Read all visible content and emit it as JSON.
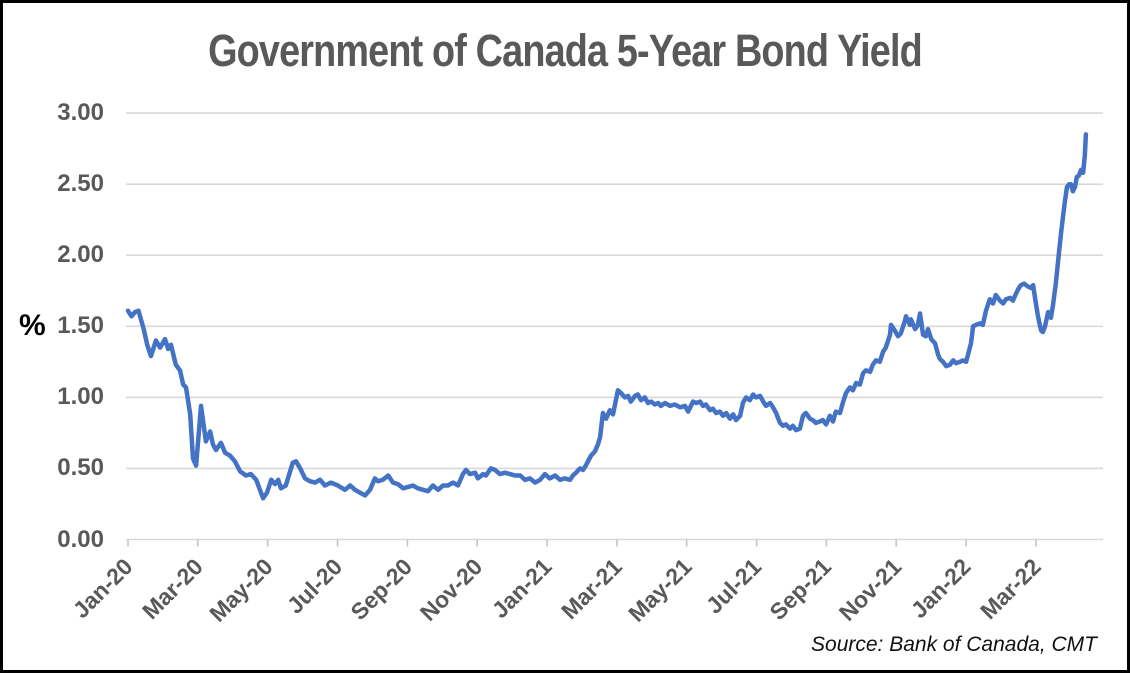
{
  "colors": {
    "line": "#4472C4",
    "grid": "#D9D9D9",
    "tick": "#C6C6C6",
    "label_gray": "#595959",
    "background": "#FFFFFF",
    "border": "#000000"
  },
  "chart_data": {
    "type": "line",
    "title": "Government of Canada 5-Year Bond Yield",
    "ylabel": "%",
    "source_note": "Source: Bank of Canada, CMT",
    "ylim": [
      0,
      3
    ],
    "ytick_step": 0.5,
    "ytick_labels": [
      "0.00",
      "0.50",
      "1.00",
      "1.50",
      "2.00",
      "2.50",
      "3.00"
    ],
    "xtick_labels": [
      "Jan-20",
      "Mar-20",
      "May-20",
      "Jul-20",
      "Sep-20",
      "Nov-20",
      "Jan-21",
      "Mar-21",
      "May-21",
      "Jul-21",
      "Sep-21",
      "Nov-21",
      "Jan-22",
      "Mar-22"
    ],
    "xtick_months": [
      0,
      2,
      4,
      6,
      8,
      10,
      12,
      14,
      16,
      18,
      20,
      22,
      24,
      26
    ],
    "x_unit": "months since Jan-2020, data ends mid-Apr-2022",
    "grid": "horizontal",
    "legend": "none",
    "series": [
      {
        "name": "Government of Canada 5-Year Bond Yield (%)",
        "points": [
          [
            0,
            1.61
          ],
          [
            0.1,
            1.57
          ],
          [
            0.2,
            1.6
          ],
          [
            0.3,
            1.61
          ],
          [
            0.45,
            1.48
          ],
          [
            0.55,
            1.37
          ],
          [
            0.66,
            1.29
          ],
          [
            0.8,
            1.4
          ],
          [
            0.92,
            1.35
          ],
          [
            1.06,
            1.41
          ],
          [
            1.15,
            1.34
          ],
          [
            1.23,
            1.37
          ],
          [
            1.37,
            1.23
          ],
          [
            1.49,
            1.19
          ],
          [
            1.58,
            1.09
          ],
          [
            1.66,
            1.07
          ],
          [
            1.78,
            0.88
          ],
          [
            1.86,
            0.57
          ],
          [
            1.95,
            0.52
          ],
          [
            2.09,
            0.94
          ],
          [
            2.23,
            0.69
          ],
          [
            2.35,
            0.76
          ],
          [
            2.43,
            0.67
          ],
          [
            2.52,
            0.63
          ],
          [
            2.66,
            0.68
          ],
          [
            2.78,
            0.61
          ],
          [
            2.92,
            0.59
          ],
          [
            3.06,
            0.55
          ],
          [
            3.21,
            0.48
          ],
          [
            3.38,
            0.45
          ],
          [
            3.52,
            0.46
          ],
          [
            3.67,
            0.42
          ],
          [
            3.87,
            0.29
          ],
          [
            3.98,
            0.33
          ],
          [
            4.1,
            0.42
          ],
          [
            4.21,
            0.39
          ],
          [
            4.3,
            0.42
          ],
          [
            4.38,
            0.36
          ],
          [
            4.52,
            0.38
          ],
          [
            4.72,
            0.54
          ],
          [
            4.81,
            0.55
          ],
          [
            4.93,
            0.5
          ],
          [
            5.07,
            0.43
          ],
          [
            5.21,
            0.41
          ],
          [
            5.35,
            0.4
          ],
          [
            5.5,
            0.42
          ],
          [
            5.64,
            0.38
          ],
          [
            5.81,
            0.4
          ],
          [
            6.01,
            0.38
          ],
          [
            6.21,
            0.35
          ],
          [
            6.36,
            0.38
          ],
          [
            6.5,
            0.35
          ],
          [
            6.64,
            0.33
          ],
          [
            6.79,
            0.31
          ],
          [
            6.93,
            0.35
          ],
          [
            7.07,
            0.43
          ],
          [
            7.16,
            0.41
          ],
          [
            7.3,
            0.42
          ],
          [
            7.45,
            0.45
          ],
          [
            7.59,
            0.4
          ],
          [
            7.73,
            0.39
          ],
          [
            7.88,
            0.36
          ],
          [
            8.02,
            0.37
          ],
          [
            8.16,
            0.38
          ],
          [
            8.3,
            0.36
          ],
          [
            8.45,
            0.35
          ],
          [
            8.59,
            0.34
          ],
          [
            8.73,
            0.38
          ],
          [
            8.88,
            0.35
          ],
          [
            9.02,
            0.38
          ],
          [
            9.16,
            0.38
          ],
          [
            9.31,
            0.4
          ],
          [
            9.45,
            0.38
          ],
          [
            9.59,
            0.46
          ],
          [
            9.68,
            0.49
          ],
          [
            9.79,
            0.46
          ],
          [
            9.94,
            0.47
          ],
          [
            10.02,
            0.43
          ],
          [
            10.17,
            0.46
          ],
          [
            10.25,
            0.45
          ],
          [
            10.39,
            0.5
          ],
          [
            10.51,
            0.49
          ],
          [
            10.65,
            0.46
          ],
          [
            10.8,
            0.47
          ],
          [
            10.94,
            0.46
          ],
          [
            11.08,
            0.45
          ],
          [
            11.23,
            0.45
          ],
          [
            11.37,
            0.42
          ],
          [
            11.51,
            0.43
          ],
          [
            11.66,
            0.4
          ],
          [
            11.8,
            0.42
          ],
          [
            11.94,
            0.46
          ],
          [
            12.08,
            0.43
          ],
          [
            12.23,
            0.45
          ],
          [
            12.37,
            0.42
          ],
          [
            12.51,
            0.43
          ],
          [
            12.66,
            0.42
          ],
          [
            12.74,
            0.45
          ],
          [
            12.83,
            0.47
          ],
          [
            12.94,
            0.5
          ],
          [
            13.03,
            0.49
          ],
          [
            13.11,
            0.52
          ],
          [
            13.26,
            0.59
          ],
          [
            13.37,
            0.62
          ],
          [
            13.46,
            0.67
          ],
          [
            13.52,
            0.72
          ],
          [
            13.6,
            0.89
          ],
          [
            13.69,
            0.85
          ],
          [
            13.8,
            0.91
          ],
          [
            13.89,
            0.88
          ],
          [
            14.03,
            1.05
          ],
          [
            14.12,
            1.03
          ],
          [
            14.23,
            1
          ],
          [
            14.32,
            1.01
          ],
          [
            14.4,
            0.97
          ],
          [
            14.52,
            1.01
          ],
          [
            14.6,
            1.02
          ],
          [
            14.69,
            0.98
          ],
          [
            14.8,
            1
          ],
          [
            14.89,
            0.96
          ],
          [
            14.98,
            0.97
          ],
          [
            15.09,
            0.95
          ],
          [
            15.18,
            0.96
          ],
          [
            15.26,
            0.94
          ],
          [
            15.38,
            0.96
          ],
          [
            15.52,
            0.94
          ],
          [
            15.66,
            0.95
          ],
          [
            15.81,
            0.93
          ],
          [
            15.95,
            0.94
          ],
          [
            16.04,
            0.9
          ],
          [
            16.18,
            0.97
          ],
          [
            16.27,
            0.96
          ],
          [
            16.38,
            0.97
          ],
          [
            16.47,
            0.94
          ],
          [
            16.55,
            0.95
          ],
          [
            16.67,
            0.91
          ],
          [
            16.75,
            0.92
          ],
          [
            16.84,
            0.89
          ],
          [
            16.95,
            0.9
          ],
          [
            17.04,
            0.87
          ],
          [
            17.13,
            0.89
          ],
          [
            17.24,
            0.85
          ],
          [
            17.33,
            0.88
          ],
          [
            17.41,
            0.84
          ],
          [
            17.53,
            0.87
          ],
          [
            17.61,
            0.96
          ],
          [
            17.7,
            1
          ],
          [
            17.81,
            0.98
          ],
          [
            17.9,
            1.02
          ],
          [
            17.98,
            1
          ],
          [
            18.1,
            1.01
          ],
          [
            18.19,
            0.97
          ],
          [
            18.27,
            0.94
          ],
          [
            18.39,
            0.96
          ],
          [
            18.47,
            0.93
          ],
          [
            18.56,
            0.89
          ],
          [
            18.67,
            0.82
          ],
          [
            18.76,
            0.8
          ],
          [
            18.84,
            0.81
          ],
          [
            18.96,
            0.78
          ],
          [
            19.04,
            0.8
          ],
          [
            19.13,
            0.77
          ],
          [
            19.24,
            0.78
          ],
          [
            19.33,
            0.87
          ],
          [
            19.41,
            0.89
          ],
          [
            19.53,
            0.85
          ],
          [
            19.61,
            0.84
          ],
          [
            19.7,
            0.82
          ],
          [
            19.81,
            0.83
          ],
          [
            19.9,
            0.84
          ],
          [
            19.99,
            0.81
          ],
          [
            20.1,
            0.87
          ],
          [
            20.19,
            0.83
          ],
          [
            20.27,
            0.9
          ],
          [
            20.39,
            0.89
          ],
          [
            20.47,
            0.96
          ],
          [
            20.56,
            1.03
          ],
          [
            20.67,
            1.07
          ],
          [
            20.76,
            1.05
          ],
          [
            20.85,
            1.1
          ],
          [
            20.96,
            1.09
          ],
          [
            21.05,
            1.17
          ],
          [
            21.13,
            1.19
          ],
          [
            21.25,
            1.18
          ],
          [
            21.33,
            1.23
          ],
          [
            21.42,
            1.26
          ],
          [
            21.53,
            1.25
          ],
          [
            21.62,
            1.32
          ],
          [
            21.7,
            1.35
          ],
          [
            21.82,
            1.44
          ],
          [
            21.85,
            1.51
          ],
          [
            21.96,
            1.47
          ],
          [
            22.05,
            1.43
          ],
          [
            22.13,
            1.45
          ],
          [
            22.25,
            1.54
          ],
          [
            22.28,
            1.57
          ],
          [
            22.39,
            1.51
          ],
          [
            22.42,
            1.55
          ],
          [
            22.54,
            1.48
          ],
          [
            22.62,
            1.51
          ],
          [
            22.68,
            1.59
          ],
          [
            22.77,
            1.44
          ],
          [
            22.85,
            1.43
          ],
          [
            22.91,
            1.48
          ],
          [
            23,
            1.41
          ],
          [
            23.11,
            1.38
          ],
          [
            23.2,
            1.3
          ],
          [
            23.25,
            1.27
          ],
          [
            23.34,
            1.25
          ],
          [
            23.43,
            1.22
          ],
          [
            23.54,
            1.23
          ],
          [
            23.63,
            1.26
          ],
          [
            23.71,
            1.24
          ],
          [
            23.83,
            1.25
          ],
          [
            23.91,
            1.26
          ],
          [
            24,
            1.25
          ],
          [
            24.14,
            1.38
          ],
          [
            24.2,
            1.5
          ],
          [
            24.28,
            1.51
          ],
          [
            24.4,
            1.52
          ],
          [
            24.48,
            1.51
          ],
          [
            24.57,
            1.61
          ],
          [
            24.68,
            1.69
          ],
          [
            24.77,
            1.66
          ],
          [
            24.85,
            1.72
          ],
          [
            24.97,
            1.68
          ],
          [
            25.06,
            1.66
          ],
          [
            25.14,
            1.69
          ],
          [
            25.26,
            1.7
          ],
          [
            25.34,
            1.68
          ],
          [
            25.43,
            1.73
          ],
          [
            25.49,
            1.76
          ],
          [
            25.57,
            1.79
          ],
          [
            25.66,
            1.8
          ],
          [
            25.77,
            1.78
          ],
          [
            25.86,
            1.77
          ],
          [
            25.92,
            1.79
          ],
          [
            26,
            1.66
          ],
          [
            26.06,
            1.57
          ],
          [
            26.12,
            1.5
          ],
          [
            26.15,
            1.47
          ],
          [
            26.2,
            1.46
          ],
          [
            26.26,
            1.5
          ],
          [
            26.35,
            1.6
          ],
          [
            26.43,
            1.56
          ],
          [
            26.49,
            1.65
          ],
          [
            26.57,
            1.8
          ],
          [
            26.66,
            2.02
          ],
          [
            26.72,
            2.16
          ],
          [
            26.77,
            2.26
          ],
          [
            26.83,
            2.38
          ],
          [
            26.89,
            2.48
          ],
          [
            26.95,
            2.5
          ],
          [
            27,
            2.5
          ],
          [
            27.06,
            2.45
          ],
          [
            27.12,
            2.48
          ],
          [
            27.17,
            2.55
          ],
          [
            27.23,
            2.56
          ],
          [
            27.29,
            2.6
          ],
          [
            27.35,
            2.58
          ],
          [
            27.4,
            2.7
          ],
          [
            27.43,
            2.85
          ]
        ]
      }
    ]
  }
}
